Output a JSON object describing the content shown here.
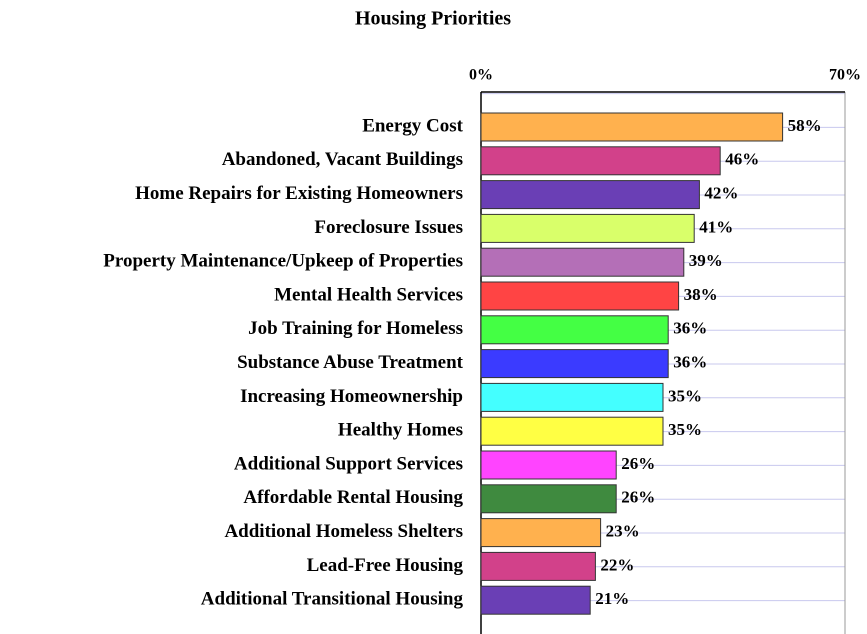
{
  "chart_data": {
    "type": "bar",
    "orientation": "horizontal",
    "title": "Housing Priorities",
    "categories": [
      "Energy Cost",
      "Abandoned, Vacant Buildings",
      "Home Repairs for Existing Homeowners",
      "Foreclosure Issues",
      "Property Maintenance/Upkeep of Properties",
      "Mental Health Services",
      "Job Training for Homeless",
      "Substance Abuse Treatment",
      "Increasing Homeownership",
      "Healthy Homes",
      "Additional Support Services",
      "Affordable Rental Housing",
      "Additional Homeless Shelters",
      "Lead-Free Housing",
      "Additional Transitional Housing"
    ],
    "values": [
      58,
      46,
      42,
      41,
      39,
      38,
      36,
      36,
      35,
      35,
      26,
      26,
      23,
      22,
      21
    ],
    "value_labels": [
      "58%",
      "46%",
      "42%",
      "41%",
      "39%",
      "38%",
      "36%",
      "36%",
      "35%",
      "35%",
      "26%",
      "26%",
      "23%",
      "22%",
      "21%"
    ],
    "colors": [
      "#ffb14e",
      "#d2418a",
      "#6a3fb5",
      "#d9ff6a",
      "#b46fb7",
      "#ff4444",
      "#44ff44",
      "#3b3bff",
      "#44ffff",
      "#ffff44",
      "#ff44ff",
      "#3f8a3f",
      "#ffb14e",
      "#d2418a",
      "#6a3fb5"
    ],
    "xlim": [
      0,
      70
    ],
    "xticks": [
      {
        "value": 0,
        "label": "0%"
      },
      {
        "value": 70,
        "label": "70%"
      }
    ],
    "grid": true
  }
}
